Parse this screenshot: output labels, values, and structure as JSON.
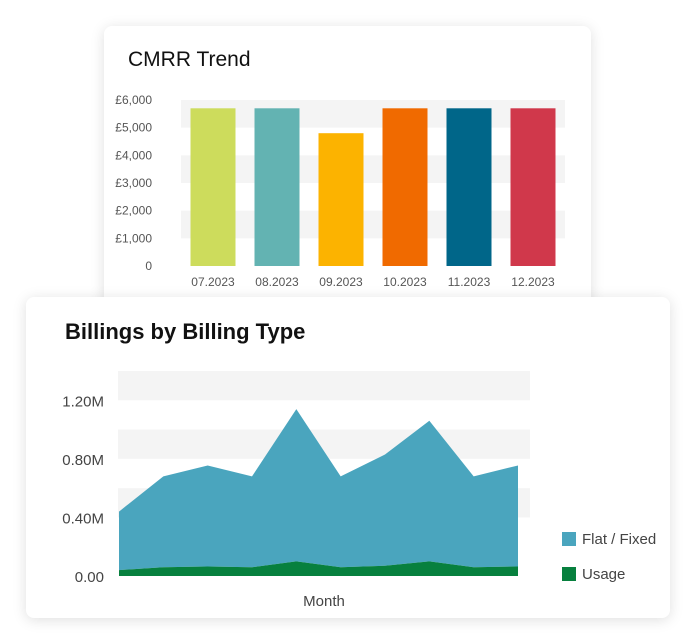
{
  "chart_data": [
    {
      "type": "bar",
      "title": "CMRR Trend",
      "categories": [
        "07.2023",
        "08.2023",
        "09.2023",
        "10.2023",
        "11.2023",
        "12.2023"
      ],
      "values": [
        5700,
        5700,
        4800,
        5700,
        5700,
        5700
      ],
      "colors": [
        "#cddc5c",
        "#63b3b2",
        "#fcb300",
        "#f06a00",
        "#006689",
        "#d0384b"
      ],
      "yticks": [
        "0",
        "£1,000",
        "£2,000",
        "£3,000",
        "£4,000",
        "£5,000",
        "£6,000"
      ],
      "ylim": [
        0,
        6000
      ],
      "grid": true,
      "xlabel": "",
      "ylabel": ""
    },
    {
      "type": "area",
      "title": "Billings by Billing Type",
      "xlabel": "Month",
      "ylabel": "",
      "stacked": true,
      "ylim": [
        0,
        1.4
      ],
      "yticks": [
        "0.00",
        "0.40M",
        "0.80M",
        "1.20M"
      ],
      "legend_position": "right",
      "series": [
        {
          "name": "Usage",
          "color": "#07803e",
          "values": [
            0.04,
            0.06,
            0.065,
            0.06,
            0.1,
            0.06,
            0.07,
            0.1,
            0.06,
            0.065
          ]
        },
        {
          "name": "Flat / Fixed",
          "color": "#4aa5be",
          "values": [
            0.4,
            0.62,
            0.69,
            0.62,
            1.04,
            0.62,
            0.76,
            0.96,
            0.62,
            0.69
          ]
        }
      ]
    }
  ]
}
